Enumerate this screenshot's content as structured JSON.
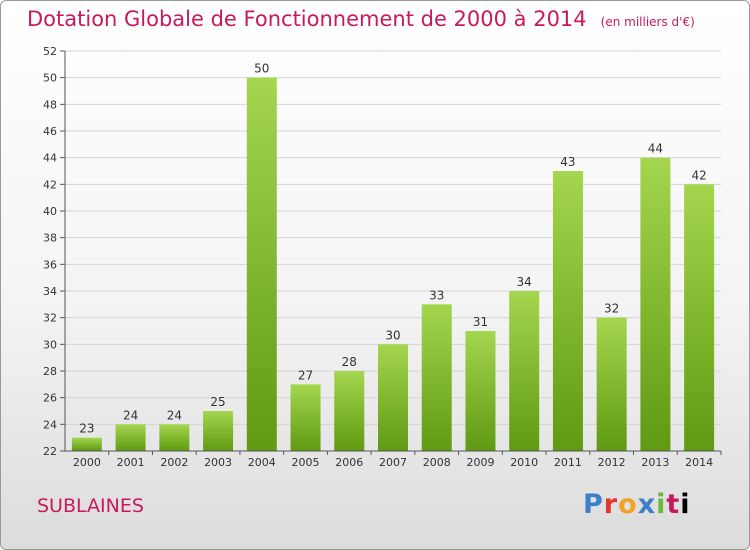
{
  "header": {
    "title": "Dotation Globale de Fonctionnement de 2000 à 2014",
    "unit": "(en milliers d'€)"
  },
  "commune": "SUBLAINES",
  "logo": {
    "letters": [
      "P",
      "r",
      "o",
      "x",
      "i",
      "t",
      "i"
    ]
  },
  "colors": {
    "title": "#c8195f",
    "bar_light": "#a4d64e",
    "bar_dark": "#5f9a12",
    "grid": "#cfcfcf"
  },
  "chart_data": {
    "type": "bar",
    "categories": [
      "2000",
      "2001",
      "2002",
      "2003",
      "2004",
      "2005",
      "2006",
      "2007",
      "2008",
      "2009",
      "2010",
      "2011",
      "2012",
      "2013",
      "2014"
    ],
    "values": [
      23,
      24,
      24,
      25,
      50,
      27,
      28,
      30,
      33,
      31,
      34,
      43,
      32,
      44,
      42
    ],
    "data_labels": [
      "23",
      "24",
      "24",
      "25",
      "50",
      "27",
      "28",
      "30",
      "33",
      "31",
      "34",
      "43",
      "32",
      "44",
      "42"
    ],
    "title": "Dotation Globale de Fonctionnement de 2000 à 2014",
    "xlabel": "",
    "ylabel": "",
    "ylim": [
      22,
      52
    ],
    "yticks": [
      "22",
      "24",
      "26",
      "28",
      "30",
      "32",
      "34",
      "36",
      "38",
      "40",
      "42",
      "44",
      "46",
      "48",
      "50",
      "52"
    ],
    "grid": true
  }
}
